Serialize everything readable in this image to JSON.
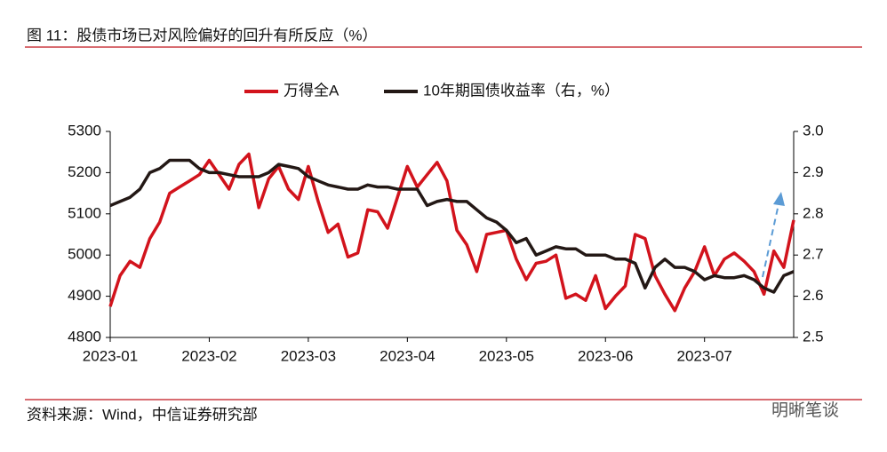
{
  "chart_data": {
    "type": "line",
    "title": "图 11：股债市场已对风险偏好的回升有所反应（%）",
    "source": "资料来源：Wind，中信证券研究部",
    "watermark": "明晰笔谈",
    "categories": [
      "2023-01",
      null,
      null,
      null,
      null,
      null,
      null,
      null,
      null,
      null,
      "2023-02",
      null,
      null,
      null,
      null,
      null,
      null,
      null,
      null,
      null,
      "2023-03",
      null,
      null,
      null,
      null,
      null,
      null,
      null,
      null,
      null,
      "2023-04",
      null,
      null,
      null,
      null,
      null,
      null,
      null,
      null,
      null,
      "2023-05",
      null,
      null,
      null,
      null,
      null,
      null,
      null,
      null,
      null,
      "2023-06",
      null,
      null,
      null,
      null,
      null,
      null,
      null,
      null,
      null,
      "2023-07",
      null,
      null,
      null,
      null,
      null,
      null,
      null,
      null,
      null
    ],
    "series": [
      {
        "name": "万得全A",
        "color": "#d2131c",
        "axis": "y",
        "values": [
          4875,
          4950,
          4985,
          4970,
          5040,
          5080,
          5150,
          5165,
          5180,
          5195,
          5230,
          5195,
          5160,
          5220,
          5245,
          5115,
          5185,
          5215,
          5160,
          5135,
          5215,
          5130,
          5055,
          5075,
          4995,
          5005,
          5110,
          5105,
          5065,
          5140,
          5215,
          5165,
          5195,
          5225,
          5180,
          5060,
          5025,
          4960,
          5050,
          5055,
          5060,
          4990,
          4940,
          4980,
          4985,
          5000,
          4895,
          4905,
          4890,
          4950,
          4870,
          4900,
          4925,
          5050,
          5040,
          4950,
          4905,
          4865,
          4920,
          4960,
          5020,
          4950,
          4990,
          5005,
          4985,
          4960,
          4905,
          5010,
          4970,
          5085
        ]
      },
      {
        "name": "10年期国债收益率（右，%）",
        "color": "#231815",
        "axis": "y2",
        "values": [
          2.82,
          2.83,
          2.84,
          2.86,
          2.9,
          2.91,
          2.93,
          2.93,
          2.93,
          2.91,
          2.9,
          2.9,
          2.895,
          2.89,
          2.89,
          2.89,
          2.9,
          2.92,
          2.915,
          2.91,
          2.89,
          2.88,
          2.87,
          2.865,
          2.86,
          2.86,
          2.87,
          2.865,
          2.865,
          2.86,
          2.86,
          2.86,
          2.82,
          2.83,
          2.835,
          2.83,
          2.83,
          2.81,
          2.79,
          2.78,
          2.76,
          2.73,
          2.74,
          2.7,
          2.71,
          2.72,
          2.715,
          2.715,
          2.7,
          2.7,
          2.7,
          2.69,
          2.69,
          2.68,
          2.62,
          2.67,
          2.69,
          2.67,
          2.67,
          2.66,
          2.64,
          2.65,
          2.645,
          2.645,
          2.65,
          2.64,
          2.62,
          2.61,
          2.65,
          2.66
        ]
      }
    ],
    "ylim": [
      4800,
      5300
    ],
    "yticks": [
      4800,
      4900,
      5000,
      5100,
      5200,
      5300
    ],
    "y2lim": [
      2.5,
      3.0
    ],
    "y2ticks": [
      2.5,
      2.6,
      2.7,
      2.8,
      2.9,
      {
        "value": 3.0,
        "label": "3.0"
      }
    ],
    "legend": "top"
  }
}
